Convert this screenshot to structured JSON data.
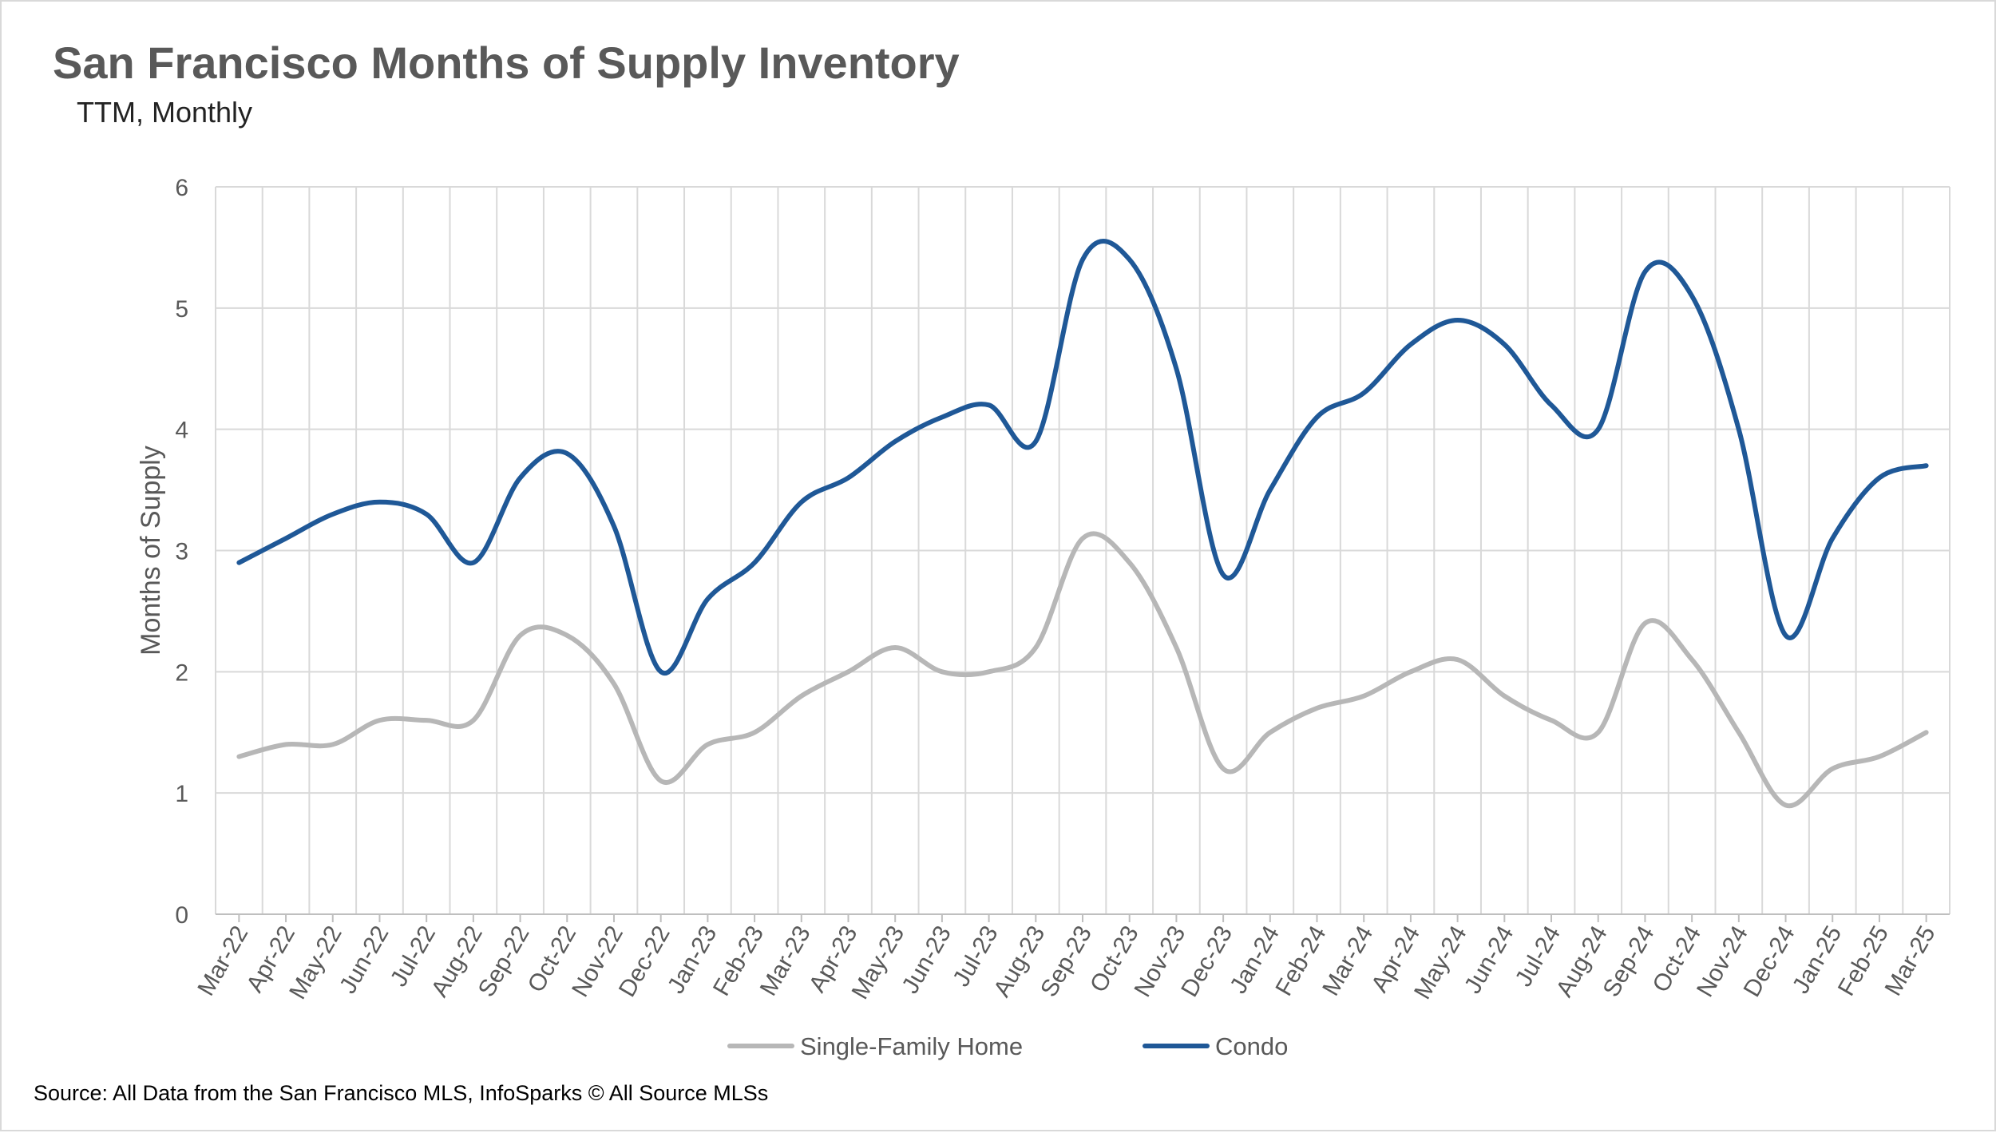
{
  "chart_data": {
    "type": "line",
    "title": "San Francisco Months of Supply Inventory",
    "subtitle": "TTM, Monthly",
    "ylabel": "Months of Supply",
    "xlabel": "",
    "ylim": [
      0,
      6
    ],
    "yticks": [
      0,
      1,
      2,
      3,
      4,
      5,
      6
    ],
    "grid": true,
    "legend_position": "bottom",
    "categories": [
      "Mar-22",
      "Apr-22",
      "May-22",
      "Jun-22",
      "Jul-22",
      "Aug-22",
      "Sep-22",
      "Oct-22",
      "Nov-22",
      "Dec-22",
      "Jan-23",
      "Feb-23",
      "Mar-23",
      "Apr-23",
      "May-23",
      "Jun-23",
      "Jul-23",
      "Aug-23",
      "Sep-23",
      "Oct-23",
      "Nov-23",
      "Dec-23",
      "Jan-24",
      "Feb-24",
      "Mar-24",
      "Apr-24",
      "May-24",
      "Jun-24",
      "Jul-24",
      "Aug-24",
      "Sep-24",
      "Oct-24",
      "Nov-24",
      "Dec-24",
      "Jan-25",
      "Feb-25",
      "Mar-25"
    ],
    "series": [
      {
        "name": "Single-Family Home",
        "color": "#b7b7b7",
        "values": [
          1.3,
          1.4,
          1.4,
          1.6,
          1.6,
          1.6,
          2.3,
          2.3,
          1.9,
          1.1,
          1.4,
          1.5,
          1.8,
          2.0,
          2.2,
          2.0,
          2.0,
          2.2,
          3.1,
          2.9,
          2.2,
          1.2,
          1.5,
          1.7,
          1.8,
          2.0,
          2.1,
          1.8,
          1.6,
          1.5,
          2.4,
          2.1,
          1.5,
          0.9,
          1.2,
          1.3,
          1.5
        ]
      },
      {
        "name": "Condo",
        "color": "#1f5897",
        "values": [
          2.9,
          3.1,
          3.3,
          3.4,
          3.3,
          2.9,
          3.6,
          3.8,
          3.2,
          2.0,
          2.6,
          2.9,
          3.4,
          3.6,
          3.9,
          4.1,
          4.2,
          3.9,
          5.4,
          5.4,
          4.5,
          2.8,
          3.5,
          4.1,
          4.3,
          4.7,
          4.9,
          4.7,
          4.2,
          4.0,
          5.3,
          5.1,
          4.0,
          2.3,
          3.1,
          3.6,
          3.7
        ]
      }
    ]
  },
  "source_text": "Source: All Data from the San Francisco MLS, InfoSparks © All Source MLSs"
}
